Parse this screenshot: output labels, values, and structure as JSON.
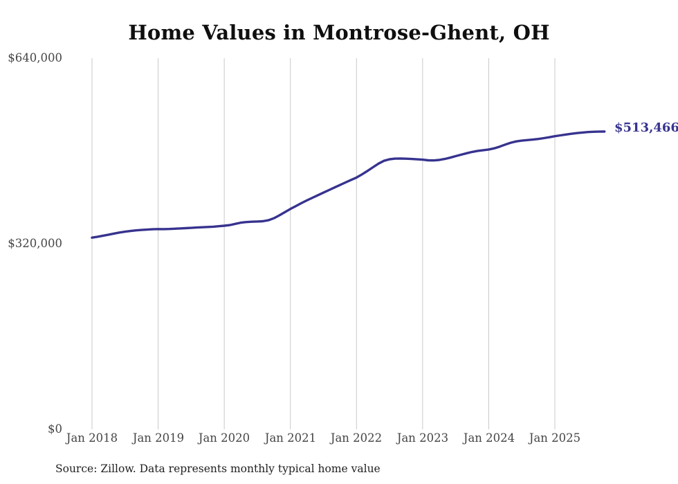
{
  "title": "Home Values in Montrose-Ghent, OH",
  "source_note": "Source: Zillow. Data represents monthly typical home value",
  "colors": {
    "background": "#ffffff",
    "line": "#37338f",
    "latest_label": "#37338f",
    "grid": "#c9c9c9",
    "axis_text": "#454545",
    "title_text": "#0f0f0f",
    "source_text": "#1f1f1f"
  },
  "chart_data": {
    "type": "line",
    "title": "Home Values in Montrose-Ghent, OH",
    "xlabel": "",
    "ylabel": "",
    "grid": "vertical-only",
    "legend": "none",
    "ylim": [
      0,
      640000
    ],
    "y_tick_values": [
      640000,
      320000,
      0
    ],
    "y_tick_labels": [
      "$640,000",
      "$320,000",
      "$0"
    ],
    "x_tick_labels": [
      "Jan 2018",
      "Jan 2019",
      "Jan 2020",
      "Jan 2021",
      "Jan 2022",
      "Jan 2023",
      "Jan 2024",
      "Jan 2025"
    ],
    "x_start": "2018-01",
    "x_end": "2025-10",
    "x_cadence": "monthly",
    "series": [
      {
        "name": "Typical home value",
        "latest_value": 513466,
        "latest_label": "$513,466",
        "values": [
          330500,
          332000,
          333800,
          335700,
          337600,
          339300,
          340800,
          342000,
          343000,
          343800,
          344400,
          344900,
          345300,
          345200,
          345400,
          345900,
          346400,
          346900,
          347400,
          347900,
          348400,
          348900,
          349400,
          350200,
          351000,
          352100,
          354300,
          356300,
          357400,
          358000,
          358300,
          358800,
          360500,
          364000,
          369000,
          374500,
          380000,
          385000,
          390000,
          394800,
          399300,
          403700,
          408100,
          412500,
          416900,
          421300,
          425700,
          430000,
          434200,
          439600,
          445600,
          451900,
          458100,
          463100,
          465700,
          466800,
          466900,
          466600,
          466100,
          465500,
          464900,
          463900,
          463700,
          464500,
          466200,
          468400,
          471000,
          473600,
          476100,
          478300,
          480100,
          481300,
          482500,
          484500,
          487500,
          491000,
          494200,
          496500,
          497800,
          498700,
          499600,
          500700,
          502100,
          503700,
          505400,
          506900,
          508300,
          509600,
          510800,
          511800,
          512600,
          513100,
          513350,
          513466
        ]
      }
    ]
  }
}
